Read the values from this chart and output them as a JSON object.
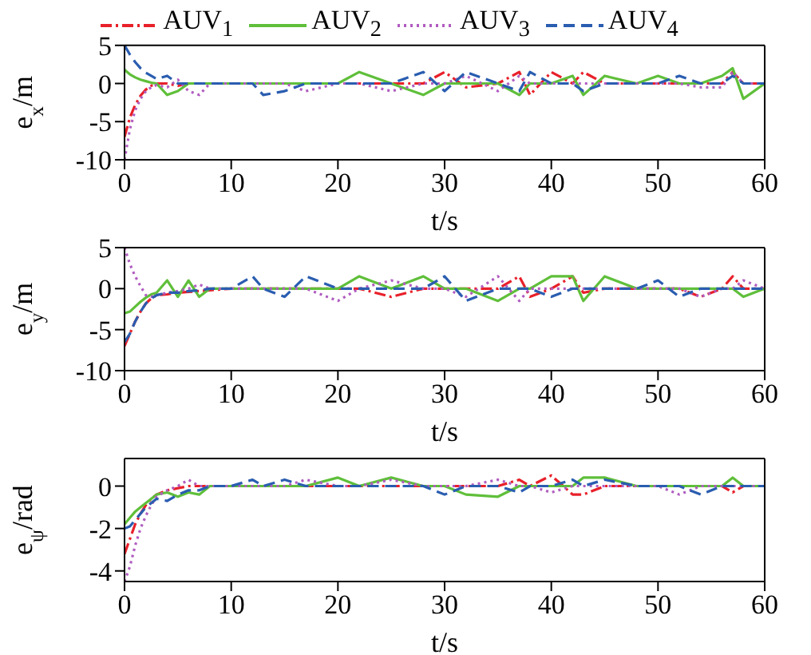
{
  "chart_data": [
    {
      "type": "line",
      "legend": "top",
      "xlabel": "t/s",
      "ylabel": "e$_{x}$/m",
      "xlim": [
        0,
        60
      ],
      "xticks": [
        0,
        10,
        20,
        30,
        40,
        50,
        60
      ],
      "ylim": [
        -10,
        5
      ],
      "yticks": [
        -10,
        -5,
        0,
        5
      ],
      "marker": "none",
      "x": [
        0,
        0.5,
        1,
        1.5,
        2,
        2.5,
        3,
        4,
        5,
        6,
        7,
        8,
        10,
        12,
        13,
        15,
        17,
        20,
        22,
        25,
        28,
        30,
        32,
        35,
        37,
        38,
        40,
        42,
        43,
        45,
        48,
        50,
        52,
        54,
        56,
        57,
        58,
        60
      ],
      "series": [
        {
          "name": "AUV$_{1}$",
          "color": "#e8202a",
          "line_style": "dashdot",
          "values": [
            -7,
            -4.5,
            -2.8,
            -1.6,
            -0.8,
            -0.3,
            0,
            0,
            -0.3,
            0,
            0,
            0,
            0,
            0,
            0,
            0,
            0,
            0,
            0,
            0,
            0,
            1.5,
            -0.5,
            0,
            1.5,
            -1.5,
            1.5,
            0,
            1.5,
            0,
            0,
            0,
            0,
            0,
            0,
            1.5,
            0,
            0
          ]
        },
        {
          "name": "AUV$_{2}$",
          "color": "#5fbf3a",
          "line_style": "solid",
          "values": [
            1.8,
            1.2,
            0.8,
            0.5,
            0.3,
            0.1,
            0,
            -1.5,
            -1,
            0,
            0,
            0,
            0,
            0,
            0,
            0,
            0,
            0,
            1.5,
            0,
            -1.5,
            0,
            0,
            0,
            -1.5,
            0,
            0,
            1,
            -1.5,
            1,
            0,
            1,
            0,
            0,
            1,
            2,
            -2,
            0
          ]
        },
        {
          "name": "AUV$_{3}$",
          "color": "#b05cc0",
          "line_style": "dotted",
          "values": [
            -10,
            -6,
            -3.5,
            -2,
            -1,
            -0.5,
            -0.2,
            -0.5,
            0.5,
            -1,
            -1.5,
            0,
            0,
            0,
            0,
            0,
            -1,
            0,
            0,
            -1,
            0,
            0,
            1,
            -1,
            1,
            0,
            0,
            0,
            0,
            0,
            0,
            0,
            0,
            -0.5,
            -0.5,
            1.5,
            0,
            0
          ]
        },
        {
          "name": "AUV$_{4}$",
          "color": "#2a5db0",
          "line_style": "dashed",
          "values": [
            5,
            3.8,
            2.8,
            2,
            1.4,
            1,
            0.6,
            1,
            0,
            0,
            0,
            0,
            0,
            0,
            -1.5,
            -1,
            0,
            0,
            0,
            0,
            1.5,
            -1,
            1.5,
            0,
            -1,
            1.5,
            0,
            0,
            -1,
            0,
            0,
            0,
            1,
            0,
            0,
            1,
            0,
            0
          ]
        }
      ]
    },
    {
      "type": "line",
      "xlabel": "t/s",
      "ylabel": "e$_{y}$/m",
      "xlim": [
        0,
        60
      ],
      "xticks": [
        0,
        10,
        20,
        30,
        40,
        50,
        60
      ],
      "ylim": [
        -10,
        5
      ],
      "yticks": [
        -10,
        -5,
        0,
        5
      ],
      "marker": "none",
      "x": [
        0,
        0.5,
        1,
        1.5,
        2,
        2.5,
        3,
        4,
        5,
        6,
        7,
        8,
        10,
        12,
        13,
        15,
        17,
        20,
        22,
        25,
        28,
        30,
        32,
        35,
        37,
        38,
        40,
        42,
        43,
        45,
        48,
        50,
        52,
        54,
        56,
        57,
        58,
        60
      ],
      "series": [
        {
          "color": "#e8202a",
          "line_style": "dashdot",
          "values": [
            -7,
            -5.5,
            -4,
            -2.8,
            -1.8,
            -1.2,
            -0.8,
            -0.7,
            -0.5,
            -0.4,
            -0.3,
            -0.2,
            0,
            0,
            0,
            0,
            0,
            0,
            0,
            -1,
            0,
            0,
            0,
            0,
            1.5,
            -1,
            0,
            1.5,
            -0.5,
            0,
            0,
            0,
            0,
            -1,
            0,
            1.5,
            0,
            0
          ]
        },
        {
          "color": "#5fbf3a",
          "line_style": "solid",
          "values": [
            -3,
            -2.8,
            -2.2,
            -1.6,
            -1.1,
            -0.7,
            -0.5,
            1,
            -1,
            1,
            -1,
            0,
            0,
            0,
            0,
            0,
            0,
            0,
            1.5,
            0,
            1.5,
            0,
            0,
            -1.5,
            0,
            0,
            1.5,
            1.5,
            -1.5,
            1.5,
            0,
            0,
            0,
            0,
            0,
            0,
            -1,
            0
          ]
        },
        {
          "color": "#b05cc0",
          "line_style": "dotted",
          "values": [
            5,
            3,
            1.5,
            0.3,
            -0.8,
            -1,
            -0.8,
            -0.5,
            -0.3,
            0,
            0.5,
            0,
            0,
            0,
            0,
            0,
            0,
            -1.5,
            0,
            1,
            0,
            0,
            -1,
            1.5,
            -1.5,
            0,
            0,
            0,
            0,
            0,
            0,
            0,
            0,
            -1,
            0,
            0,
            1,
            0
          ]
        },
        {
          "color": "#2a5db0",
          "line_style": "dashed",
          "values": [
            -6.5,
            -5.5,
            -4,
            -2.8,
            -1.8,
            -1.2,
            -0.8,
            -0.5,
            -0.5,
            -0.3,
            -0.2,
            0,
            0,
            1.5,
            0,
            -1,
            1.5,
            0,
            0,
            0,
            0,
            1.5,
            -1.5,
            0,
            0,
            0,
            -1,
            0,
            0,
            0,
            0,
            1,
            -1,
            0,
            0,
            0,
            0,
            0
          ]
        }
      ]
    },
    {
      "type": "line",
      "xlabel": "t/s",
      "ylabel": "e$_{ψ}$/rad",
      "xlim": [
        0,
        60
      ],
      "xticks": [
        0,
        10,
        20,
        30,
        40,
        50,
        60
      ],
      "ylim": [
        -4.5,
        1.3
      ],
      "yticks": [
        -4,
        -2,
        0
      ],
      "marker": "none",
      "x": [
        0,
        0.5,
        1,
        1.5,
        2,
        2.5,
        3,
        4,
        5,
        6,
        7,
        8,
        10,
        12,
        13,
        15,
        17,
        20,
        22,
        25,
        28,
        30,
        32,
        35,
        37,
        38,
        40,
        42,
        43,
        45,
        48,
        50,
        52,
        54,
        56,
        57,
        58,
        60
      ],
      "series": [
        {
          "color": "#e8202a",
          "line_style": "dashdot",
          "values": [
            -3.2,
            -2.5,
            -1.8,
            -1.3,
            -0.9,
            -0.6,
            -0.4,
            -0.2,
            -0.1,
            0,
            0,
            0,
            0,
            0,
            0,
            0,
            0,
            0,
            0,
            0,
            0,
            0,
            0,
            0,
            0.3,
            0,
            0.5,
            -0.4,
            -0.4,
            0,
            0,
            0,
            0,
            0,
            0,
            -0.3,
            0,
            0
          ]
        },
        {
          "color": "#5fbf3a",
          "line_style": "solid",
          "values": [
            -1.8,
            -1.5,
            -1.2,
            -1,
            -0.8,
            -0.6,
            -0.4,
            -0.3,
            -0.5,
            -0.3,
            -0.4,
            0,
            0,
            0,
            0,
            0,
            0,
            0.4,
            0,
            0.4,
            0,
            0,
            -0.4,
            -0.5,
            0,
            0,
            0,
            0,
            0.4,
            0.4,
            0,
            0,
            0,
            0,
            0,
            0.4,
            0,
            0
          ]
        },
        {
          "color": "#b05cc0",
          "line_style": "dotted",
          "values": [
            -4.5,
            -3.8,
            -2.8,
            -2,
            -1.4,
            -0.9,
            -0.5,
            -0.2,
            0,
            0.3,
            0,
            0,
            0,
            0,
            0,
            0,
            0.3,
            0,
            0,
            0.3,
            0,
            0,
            0,
            0.3,
            0,
            0,
            -0.3,
            0,
            0,
            0,
            0,
            0,
            -0.4,
            0,
            0,
            0,
            0,
            0
          ]
        },
        {
          "color": "#2a5db0",
          "line_style": "dashed",
          "values": [
            -2,
            -1.9,
            -1.6,
            -1.3,
            -1,
            -0.8,
            -0.6,
            -0.7,
            -0.4,
            -0.2,
            -0.2,
            0,
            0,
            0.3,
            0,
            0.3,
            0,
            0,
            0,
            0,
            0,
            -0.4,
            0,
            0,
            -0.3,
            0,
            0,
            0.3,
            0,
            0.3,
            0,
            0,
            0,
            -0.4,
            0,
            0,
            0,
            0
          ]
        }
      ]
    }
  ]
}
